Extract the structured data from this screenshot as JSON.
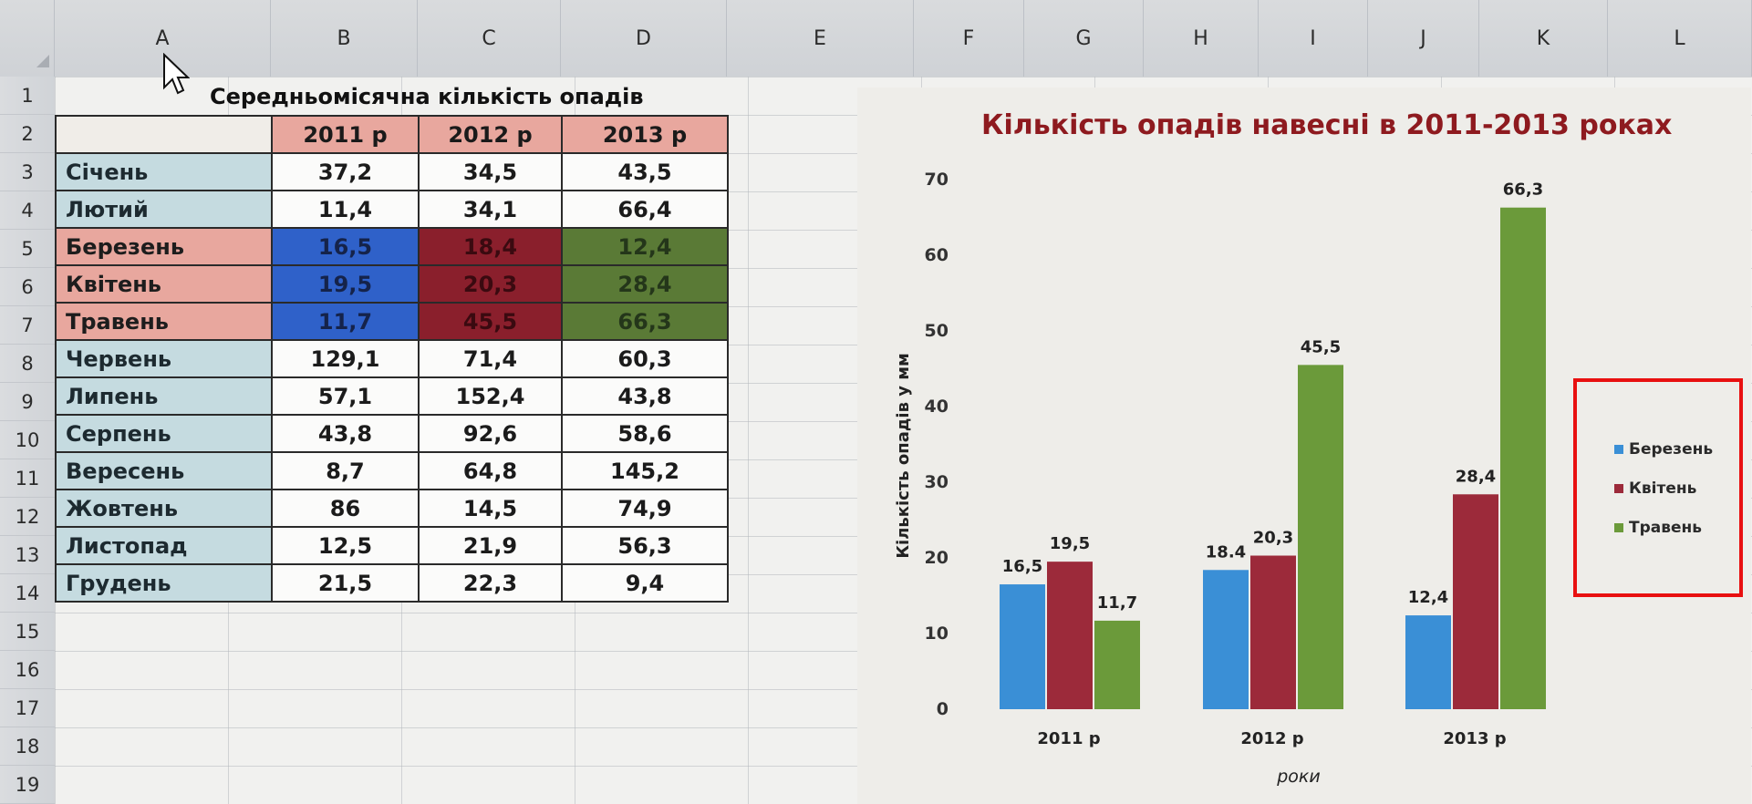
{
  "columns": [
    "A",
    "B",
    "C",
    "D",
    "E",
    "F",
    "G",
    "H",
    "I",
    "J",
    "K",
    "L"
  ],
  "rows": [
    "1",
    "2",
    "3",
    "4",
    "5",
    "6",
    "7",
    "8",
    "9",
    "10",
    "11",
    "12",
    "13",
    "14",
    "15",
    "16",
    "17",
    "18",
    "19"
  ],
  "sheet": {
    "title": "Середньомісячна кількість опадів",
    "headers": [
      "2011 р",
      "2012 р",
      "2013 р"
    ],
    "months": [
      {
        "name": "Січень",
        "v": [
          "37,2",
          "34,5",
          "43,5"
        ]
      },
      {
        "name": "Лютий",
        "v": [
          "11,4",
          "34,1",
          "66,4"
        ]
      },
      {
        "name": "Березень",
        "v": [
          "16,5",
          "18,4",
          "12,4"
        ]
      },
      {
        "name": "Квітень",
        "v": [
          "19,5",
          "20,3",
          "28,4"
        ]
      },
      {
        "name": "Травень",
        "v": [
          "11,7",
          "45,5",
          "66,3"
        ]
      },
      {
        "name": "Червень",
        "v": [
          "129,1",
          "71,4",
          "60,3"
        ]
      },
      {
        "name": "Липень",
        "v": [
          "57,1",
          "152,4",
          "43,8"
        ]
      },
      {
        "name": "Серпень",
        "v": [
          "43,8",
          "92,6",
          "58,6"
        ]
      },
      {
        "name": "Вересень",
        "v": [
          "8,7",
          "64,8",
          "145,2"
        ]
      },
      {
        "name": "Жовтень",
        "v": [
          "86",
          "14,5",
          "74,9"
        ]
      },
      {
        "name": "Листопад",
        "v": [
          "12,5",
          "21,9",
          "56,3"
        ]
      },
      {
        "name": "Грудень",
        "v": [
          "21,5",
          "22,3",
          "9,4"
        ]
      }
    ]
  },
  "colors": {
    "march": "#3a8fd6",
    "april": "#9c2a3a",
    "may": "#6b9a3a",
    "title": "#8e1a1f",
    "highlight": "#e81010"
  },
  "chart_data": {
    "type": "bar",
    "title": "Кількість опадів навесні в 2011-2013 роках",
    "categories": [
      "2011 р",
      "2012 р",
      "2013 р"
    ],
    "series": [
      {
        "name": "Березень",
        "values": [
          16.5,
          18.4,
          12.4
        ],
        "labels": [
          "16,5",
          "18.4",
          "12,4"
        ]
      },
      {
        "name": "Квітень",
        "values": [
          19.5,
          20.3,
          28.4
        ],
        "labels": [
          "19,5",
          "20,3",
          "28,4"
        ]
      },
      {
        "name": "Травень",
        "values": [
          11.7,
          45.5,
          66.3
        ],
        "labels": [
          "11,7",
          "45,5",
          "66,3"
        ]
      }
    ],
    "xlabel": "роки",
    "ylabel": "Кількість опадів у мм",
    "ylim": [
      0,
      70
    ],
    "yticks": [
      "0",
      "10",
      "20",
      "30",
      "40",
      "50",
      "60",
      "70"
    ],
    "legend": "right"
  }
}
